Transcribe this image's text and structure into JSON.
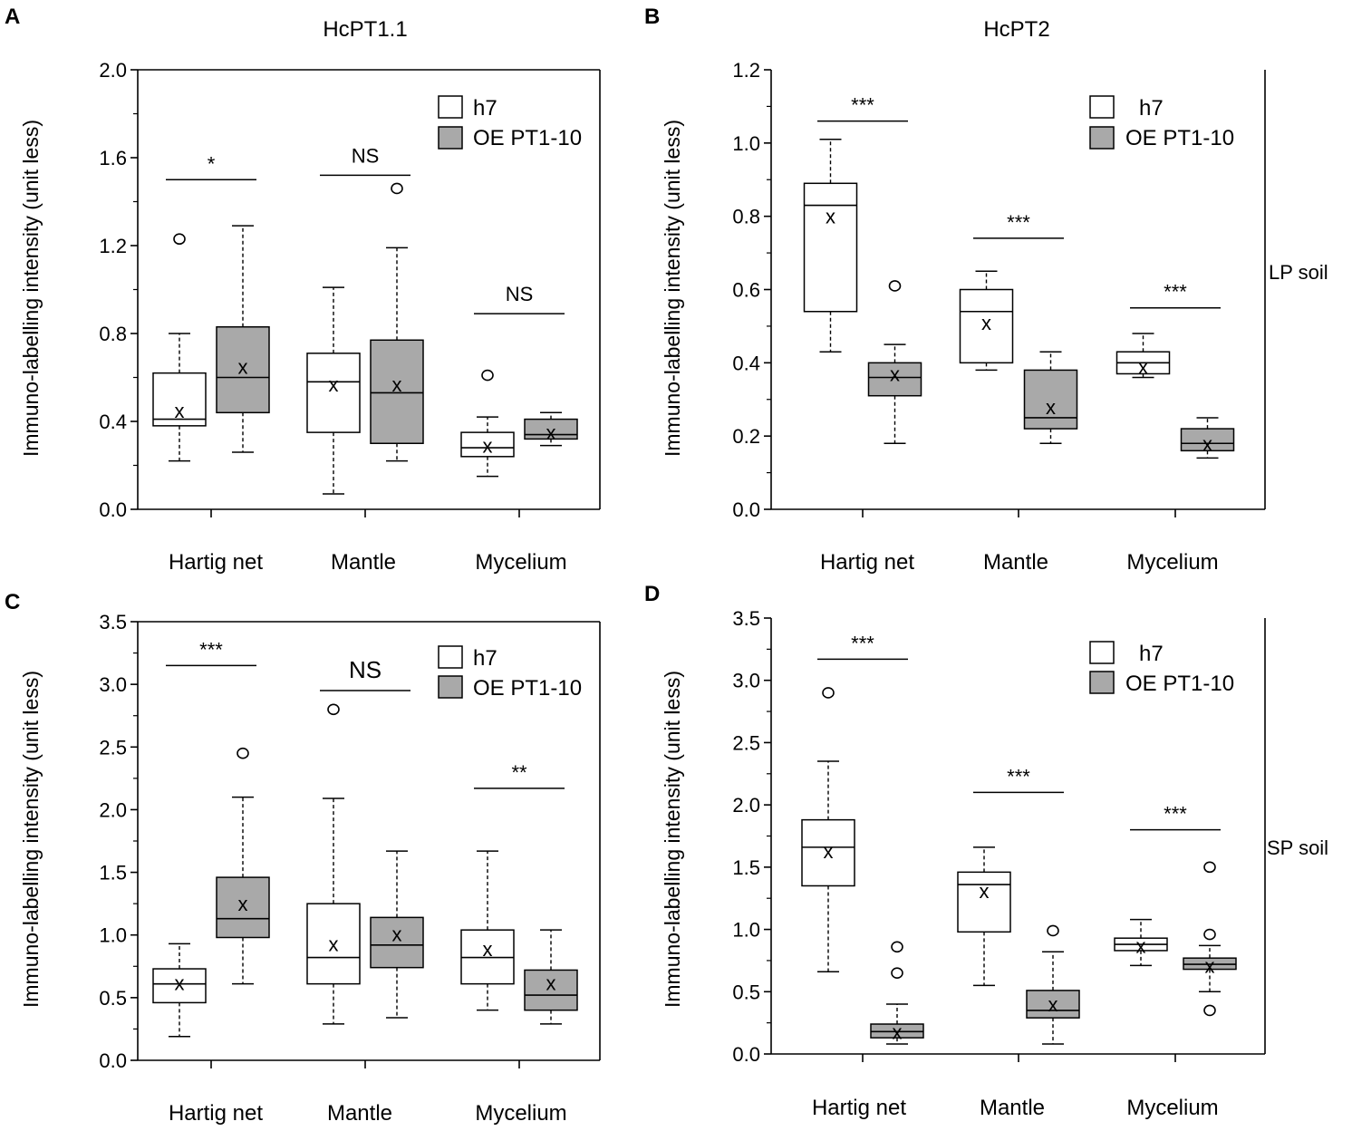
{
  "figure": {
    "side_labels": [
      "LP soil",
      "SP soil"
    ]
  },
  "legend": [
    {
      "label": "h7",
      "fill": "#ffffff"
    },
    {
      "label": "OE PT1-10",
      "fill": "#a9a9a9"
    }
  ],
  "colors": {
    "h7": "#ffffff",
    "oe": "#a9a9a9",
    "stroke": "#000000"
  },
  "chart_data": [
    {
      "panel": "A",
      "type": "box",
      "title": "HcPT1.1",
      "ylabel": "Immuno-labelling intensity (unit less)",
      "categories": [
        "Hartig net",
        "Mantle",
        "Mycelium"
      ],
      "ylim": [
        0,
        2.0
      ],
      "yticks": [
        "0.0",
        "0.4",
        "0.8",
        "1.2",
        "1.6",
        "2.0"
      ],
      "boxes": [
        {
          "group": 0,
          "series": "h7",
          "q1": 0.38,
          "median": 0.41,
          "q3": 0.62,
          "wlo": 0.22,
          "whi": 0.8,
          "mean": 0.45,
          "outliers": [
            1.23
          ]
        },
        {
          "group": 0,
          "series": "OE PT1-10",
          "q1": 0.44,
          "median": 0.6,
          "q3": 0.83,
          "wlo": 0.26,
          "whi": 1.29,
          "mean": 0.65,
          "outliers": []
        },
        {
          "group": 1,
          "series": "h7",
          "q1": 0.35,
          "median": 0.58,
          "q3": 0.71,
          "wlo": 0.07,
          "whi": 1.01,
          "mean": 0.57,
          "outliers": []
        },
        {
          "group": 1,
          "series": "OE PT1-10",
          "q1": 0.3,
          "median": 0.53,
          "q3": 0.77,
          "wlo": 0.22,
          "whi": 1.19,
          "mean": 0.57,
          "outliers": [
            1.46
          ]
        },
        {
          "group": 2,
          "series": "h7",
          "q1": 0.24,
          "median": 0.28,
          "q3": 0.35,
          "wlo": 0.15,
          "whi": 0.42,
          "mean": 0.29,
          "outliers": [
            0.61
          ]
        },
        {
          "group": 2,
          "series": "OE PT1-10",
          "q1": 0.32,
          "median": 0.34,
          "q3": 0.41,
          "wlo": 0.29,
          "whi": 0.44,
          "mean": 0.35,
          "outliers": []
        }
      ],
      "significance": [
        {
          "group": 0,
          "label": "*",
          "y": 1.5
        },
        {
          "group": 1,
          "label": "NS",
          "y": 1.52
        },
        {
          "group": 2,
          "label": "NS",
          "y": 0.89
        }
      ]
    },
    {
      "panel": "B",
      "type": "box",
      "title": "HcPT2",
      "ylabel": "Immuno-labelling intensity (unit less)",
      "categories": [
        "Hartig net",
        "Mantle",
        "Mycelium"
      ],
      "ylim": [
        0,
        1.2
      ],
      "yticks": [
        "0.0",
        "0.2",
        "0.4",
        "0.6",
        "0.8",
        "1.0",
        "1.2"
      ],
      "boxes": [
        {
          "group": 0,
          "series": "h7",
          "q1": 0.54,
          "median": 0.83,
          "q3": 0.89,
          "wlo": 0.43,
          "whi": 1.01,
          "mean": 0.8,
          "outliers": []
        },
        {
          "group": 0,
          "series": "OE PT1-10",
          "q1": 0.31,
          "median": 0.36,
          "q3": 0.4,
          "wlo": 0.18,
          "whi": 0.45,
          "mean": 0.37,
          "outliers": [
            0.61
          ]
        },
        {
          "group": 1,
          "series": "h7",
          "q1": 0.4,
          "median": 0.54,
          "q3": 0.6,
          "wlo": 0.38,
          "whi": 0.65,
          "mean": 0.51,
          "outliers": []
        },
        {
          "group": 1,
          "series": "OE PT1-10",
          "q1": 0.22,
          "median": 0.25,
          "q3": 0.38,
          "wlo": 0.18,
          "whi": 0.43,
          "mean": 0.28,
          "outliers": []
        },
        {
          "group": 2,
          "series": "h7",
          "q1": 0.37,
          "median": 0.4,
          "q3": 0.43,
          "wlo": 0.36,
          "whi": 0.48,
          "mean": 0.39,
          "outliers": []
        },
        {
          "group": 2,
          "series": "OE PT1-10",
          "q1": 0.16,
          "median": 0.18,
          "q3": 0.22,
          "wlo": 0.14,
          "whi": 0.25,
          "mean": 0.18,
          "outliers": []
        }
      ],
      "significance": [
        {
          "group": 0,
          "label": "***",
          "y": 1.06
        },
        {
          "group": 1,
          "label": "***",
          "y": 0.74
        },
        {
          "group": 2,
          "label": "***",
          "y": 0.55
        }
      ]
    },
    {
      "panel": "C",
      "type": "box",
      "title": "",
      "ylabel": "Immuno-labelling intensity (unit less)",
      "categories": [
        "Hartig net",
        "Mantle",
        "Mycelium"
      ],
      "ylim": [
        0,
        3.5
      ],
      "yticks": [
        "0.0",
        "0.5",
        "1.0",
        "1.5",
        "2.0",
        "2.5",
        "3.0",
        "3.5"
      ],
      "boxes": [
        {
          "group": 0,
          "series": "h7",
          "q1": 0.46,
          "median": 0.61,
          "q3": 0.73,
          "wlo": 0.19,
          "whi": 0.93,
          "mean": 0.62,
          "outliers": []
        },
        {
          "group": 0,
          "series": "OE PT1-10",
          "q1": 0.98,
          "median": 1.13,
          "q3": 1.46,
          "wlo": 0.61,
          "whi": 2.1,
          "mean": 1.25,
          "outliers": [
            2.45
          ]
        },
        {
          "group": 1,
          "series": "h7",
          "q1": 0.61,
          "median": 0.82,
          "q3": 1.25,
          "wlo": 0.29,
          "whi": 2.09,
          "mean": 0.93,
          "outliers": [
            2.8
          ]
        },
        {
          "group": 1,
          "series": "OE PT1-10",
          "q1": 0.74,
          "median": 0.92,
          "q3": 1.14,
          "wlo": 0.34,
          "whi": 1.67,
          "mean": 1.01,
          "outliers": []
        },
        {
          "group": 2,
          "series": "h7",
          "q1": 0.61,
          "median": 0.82,
          "q3": 1.04,
          "wlo": 0.4,
          "whi": 1.67,
          "mean": 0.89,
          "outliers": []
        },
        {
          "group": 2,
          "series": "OE PT1-10",
          "q1": 0.4,
          "median": 0.52,
          "q3": 0.72,
          "wlo": 0.29,
          "whi": 1.04,
          "mean": 0.62,
          "outliers": []
        }
      ],
      "significance": [
        {
          "group": 0,
          "label": "***",
          "y": 3.15
        },
        {
          "group": 1,
          "label": "NS",
          "y": 2.95
        },
        {
          "group": 2,
          "label": "**",
          "y": 2.17
        }
      ]
    },
    {
      "panel": "D",
      "type": "box",
      "title": "",
      "ylabel": "Immuno-labelling intensity (unit less)",
      "categories": [
        "Hartig net",
        "Mantle",
        "Mycelium"
      ],
      "ylim": [
        0,
        3.5
      ],
      "yticks": [
        "0.0",
        "0.5",
        "1.0",
        "1.5",
        "2.0",
        "2.5",
        "3.0",
        "3.5"
      ],
      "boxes": [
        {
          "group": 0,
          "series": "h7",
          "q1": 1.35,
          "median": 1.66,
          "q3": 1.88,
          "wlo": 0.66,
          "whi": 2.35,
          "mean": 1.63,
          "outliers": [
            2.9
          ]
        },
        {
          "group": 0,
          "series": "OE PT1-10",
          "q1": 0.13,
          "median": 0.18,
          "q3": 0.24,
          "wlo": 0.08,
          "whi": 0.4,
          "mean": 0.18,
          "outliers": [
            0.65,
            0.86
          ]
        },
        {
          "group": 1,
          "series": "h7",
          "q1": 0.98,
          "median": 1.36,
          "q3": 1.46,
          "wlo": 0.55,
          "whi": 1.66,
          "mean": 1.31,
          "outliers": []
        },
        {
          "group": 1,
          "series": "OE PT1-10",
          "q1": 0.29,
          "median": 0.35,
          "q3": 0.51,
          "wlo": 0.08,
          "whi": 0.82,
          "mean": 0.4,
          "outliers": [
            0.99
          ]
        },
        {
          "group": 2,
          "series": "h7",
          "q1": 0.83,
          "median": 0.88,
          "q3": 0.93,
          "wlo": 0.71,
          "whi": 1.08,
          "mean": 0.87,
          "outliers": []
        },
        {
          "group": 2,
          "series": "OE PT1-10",
          "q1": 0.68,
          "median": 0.72,
          "q3": 0.77,
          "wlo": 0.5,
          "whi": 0.87,
          "mean": 0.71,
          "outliers": [
            0.35,
            0.96,
            1.5
          ]
        }
      ],
      "significance": [
        {
          "group": 0,
          "label": "***",
          "y": 3.17
        },
        {
          "group": 1,
          "label": "***",
          "y": 2.1
        },
        {
          "group": 2,
          "label": "***",
          "y": 1.8
        }
      ]
    }
  ]
}
